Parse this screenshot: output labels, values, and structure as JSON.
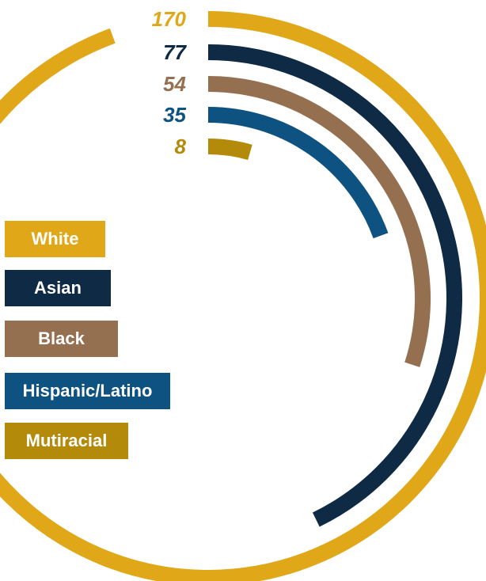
{
  "chart_data": {
    "type": "radial_bar",
    "categories": [
      "White",
      "Asian",
      "Black",
      "Hispanic/Latino",
      "Mutiracial"
    ],
    "values": [
      170,
      77,
      54,
      35,
      8
    ],
    "value_labels": [
      "170",
      "77",
      "54",
      "35",
      "8"
    ],
    "colors": [
      "#e0a818",
      "#0e2a44",
      "#947050",
      "#0e5282",
      "#b48a0a"
    ],
    "legend_position": "left",
    "title": "",
    "xlabel": "",
    "ylabel": ""
  }
}
